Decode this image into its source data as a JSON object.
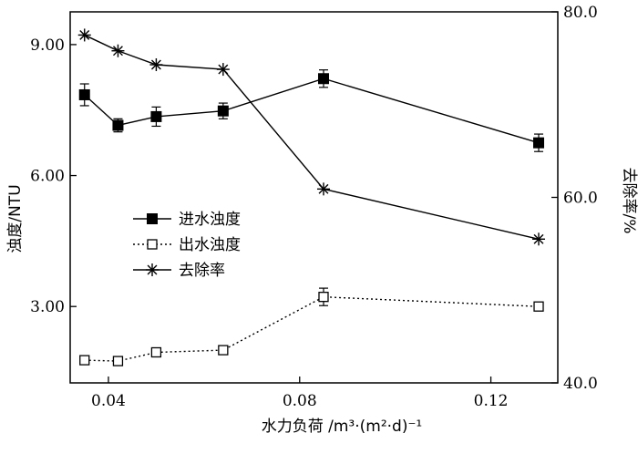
{
  "chart_data": {
    "type": "line",
    "title": "",
    "xlabel": "水力负荷 /m³·(m²·d)⁻¹",
    "ylabel": "浊度/NTU",
    "y2label": "去除率/%",
    "xlim": [
      0.032,
      0.134
    ],
    "ylim": [
      1.25,
      9.75
    ],
    "y2lim": [
      40.0,
      80.0
    ],
    "xticks": [
      0.04,
      0.08,
      0.12
    ],
    "xtick_labels": [
      "0.04",
      "0.08",
      "0.12"
    ],
    "yticks": [
      3.0,
      6.0,
      9.0
    ],
    "ytick_labels": [
      "3.00",
      "6.00",
      "9.00"
    ],
    "y2ticks": [
      40.0,
      60.0,
      80.0
    ],
    "y2tick_labels": [
      "40.0",
      "60.0",
      "80.0"
    ],
    "grid": false,
    "legend_position": "center-left",
    "x": [
      0.035,
      0.042,
      0.05,
      0.064,
      0.085,
      0.13
    ],
    "series": [
      {
        "name": "进水浊度",
        "axis": "left",
        "marker": "filled-square",
        "line": "solid",
        "values": [
          7.85,
          7.15,
          7.35,
          7.48,
          8.22,
          6.75
        ],
        "errors": [
          0.25,
          0.15,
          0.22,
          0.18,
          0.2,
          0.2
        ]
      },
      {
        "name": "出水浊度",
        "axis": "left",
        "marker": "open-square",
        "line": "dotted",
        "values": [
          1.77,
          1.75,
          1.95,
          2.0,
          3.22,
          3.0
        ],
        "errors": [
          0.1,
          0.1,
          0.1,
          0.1,
          0.2,
          0.0
        ]
      },
      {
        "name": "去除率",
        "axis": "right",
        "marker": "asterisk",
        "line": "solid",
        "values": [
          77.5,
          75.8,
          74.3,
          73.8,
          60.9,
          55.5
        ],
        "errors": []
      }
    ]
  }
}
